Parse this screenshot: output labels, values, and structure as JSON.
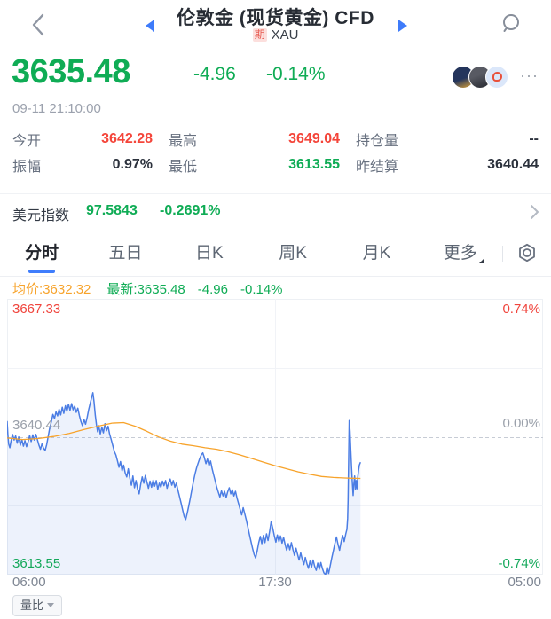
{
  "colors": {
    "up_red": "#f4453a",
    "down_green": "#0fac55",
    "accent_blue": "#3e7bfa",
    "avg_orange": "#f7a32b",
    "price_line_blue": "#4b7de4"
  },
  "header": {
    "title": "伦敦金 (现货黄金) CFD",
    "badge": "期",
    "symbol": "XAU"
  },
  "quote": {
    "price": "3635.48",
    "change": "-4.96",
    "change_pct": "-0.14%",
    "timestamp": "09-11 21:10:00",
    "more": "···"
  },
  "stats": {
    "items": [
      {
        "label": "今开",
        "value": "3642.28",
        "trend": "up"
      },
      {
        "label": "最高",
        "value": "3649.04",
        "trend": "up"
      },
      {
        "label": "持仓量",
        "value": "--",
        "trend": "flat"
      },
      {
        "label": "振幅",
        "value": "0.97%",
        "trend": "flat"
      },
      {
        "label": "最低",
        "value": "3613.55",
        "trend": "down"
      },
      {
        "label": "昨结算",
        "value": "3640.44",
        "trend": "flat"
      }
    ]
  },
  "usd_index": {
    "label": "美元指数",
    "value": "97.5843",
    "change_pct": "-0.2691%",
    "trend": "down"
  },
  "tabs": {
    "active": "分时",
    "items": [
      {
        "label": "分时"
      },
      {
        "label": "五日"
      },
      {
        "label": "日K"
      },
      {
        "label": "周K"
      },
      {
        "label": "月K"
      },
      {
        "label": "更多"
      }
    ]
  },
  "legend": {
    "avg": "均价:3632.32",
    "last": "最新:3635.48",
    "change": "-4.96",
    "change_pct": "-0.14%"
  },
  "chart_data": {
    "type": "line",
    "title": "分时 intraday line with average line",
    "grid": true,
    "x_range_minutes": [
      0,
      1380
    ],
    "x_tick_labels": [
      "06:00",
      "17:30",
      "05:00"
    ],
    "y_max": 3667.33,
    "y_min": 3613.55,
    "prev_settle": 3640.44,
    "session_high": 3649.04,
    "session_low": 3613.55,
    "last": 3635.48,
    "average": 3632.32,
    "y_axis_left": [
      {
        "text": "3667.33",
        "trend": "up"
      },
      {
        "text": "3640.44",
        "trend": "flat"
      },
      {
        "text": "3613.55",
        "trend": "down"
      }
    ],
    "y_axis_right": [
      {
        "text": "0.74%",
        "trend": "up"
      },
      {
        "text": "0.00%",
        "trend": "flat"
      },
      {
        "text": "-0.74%",
        "trend": "down"
      }
    ],
    "series": [
      {
        "name": "price",
        "color": "#4b7de4",
        "fill": "rgba(75,125,228,0.10)",
        "points": [
          [
            0,
            3643.5
          ],
          [
            2,
            3640.8
          ],
          [
            4,
            3639.0
          ],
          [
            7,
            3638.3
          ],
          [
            10,
            3639.6
          ],
          [
            14,
            3640.9
          ],
          [
            18,
            3639.8
          ],
          [
            22,
            3640.6
          ],
          [
            26,
            3639.2
          ],
          [
            30,
            3640.4
          ],
          [
            34,
            3638.8
          ],
          [
            38,
            3639.9
          ],
          [
            42,
            3638.6
          ],
          [
            46,
            3639.7
          ],
          [
            50,
            3638.5
          ],
          [
            54,
            3639.4
          ],
          [
            58,
            3640.7
          ],
          [
            62,
            3639.5
          ],
          [
            66,
            3640.8
          ],
          [
            70,
            3639.8
          ],
          [
            74,
            3640.9
          ],
          [
            78,
            3639.9
          ],
          [
            82,
            3638.8
          ],
          [
            86,
            3638.0
          ],
          [
            90,
            3639.1
          ],
          [
            94,
            3638.2
          ],
          [
            98,
            3637.8
          ],
          [
            102,
            3638.9
          ],
          [
            106,
            3640.6
          ],
          [
            110,
            3642.2
          ],
          [
            114,
            3643.4
          ],
          [
            118,
            3644.8
          ],
          [
            122,
            3644.0
          ],
          [
            126,
            3645.3
          ],
          [
            130,
            3644.5
          ],
          [
            134,
            3645.8
          ],
          [
            138,
            3644.7
          ],
          [
            142,
            3646.2
          ],
          [
            146,
            3645.0
          ],
          [
            150,
            3646.5
          ],
          [
            154,
            3645.4
          ],
          [
            158,
            3646.8
          ],
          [
            162,
            3645.6
          ],
          [
            166,
            3646.9
          ],
          [
            170,
            3645.7
          ],
          [
            174,
            3646.4
          ],
          [
            178,
            3645.2
          ],
          [
            182,
            3646.0
          ],
          [
            186,
            3644.6
          ],
          [
            190,
            3643.4
          ],
          [
            194,
            3642.6
          ],
          [
            198,
            3643.8
          ],
          [
            202,
            3642.9
          ],
          [
            206,
            3644.2
          ],
          [
            210,
            3645.7
          ],
          [
            214,
            3647.0
          ],
          [
            218,
            3648.2
          ],
          [
            221,
            3649.04
          ],
          [
            224,
            3647.2
          ],
          [
            227,
            3644.6
          ],
          [
            230,
            3642.8
          ],
          [
            233,
            3641.4
          ],
          [
            236,
            3642.6
          ],
          [
            240,
            3641.0
          ],
          [
            244,
            3642.3
          ],
          [
            248,
            3641.2
          ],
          [
            252,
            3643.0
          ],
          [
            256,
            3641.6
          ],
          [
            260,
            3642.5
          ],
          [
            264,
            3641.0
          ],
          [
            268,
            3639.9
          ],
          [
            272,
            3638.8
          ],
          [
            276,
            3637.6
          ],
          [
            280,
            3636.9
          ],
          [
            284,
            3635.8
          ],
          [
            288,
            3634.5
          ],
          [
            292,
            3635.6
          ],
          [
            296,
            3633.8
          ],
          [
            300,
            3634.9
          ],
          [
            304,
            3633.4
          ],
          [
            308,
            3632.6
          ],
          [
            312,
            3634.2
          ],
          [
            316,
            3632.4
          ],
          [
            320,
            3631.0
          ],
          [
            324,
            3632.8
          ],
          [
            328,
            3630.5
          ],
          [
            332,
            3631.9
          ],
          [
            336,
            3630.2
          ],
          [
            340,
            3629.3
          ],
          [
            344,
            3631.2
          ],
          [
            348,
            3632.6
          ],
          [
            352,
            3631.4
          ],
          [
            356,
            3632.9
          ],
          [
            360,
            3631.6
          ],
          [
            364,
            3630.4
          ],
          [
            368,
            3631.8
          ],
          [
            372,
            3630.6
          ],
          [
            376,
            3632.0
          ],
          [
            380,
            3630.8
          ],
          [
            384,
            3631.9
          ],
          [
            388,
            3630.2
          ],
          [
            392,
            3631.4
          ],
          [
            396,
            3630.6
          ],
          [
            400,
            3631.8
          ],
          [
            404,
            3630.9
          ],
          [
            408,
            3631.9
          ],
          [
            412,
            3630.4
          ],
          [
            416,
            3631.5
          ],
          [
            420,
            3632.2
          ],
          [
            424,
            3631.0
          ],
          [
            428,
            3631.9
          ],
          [
            432,
            3630.6
          ],
          [
            436,
            3631.4
          ],
          [
            440,
            3630.0
          ],
          [
            444,
            3628.8
          ],
          [
            448,
            3627.5
          ],
          [
            452,
            3626.2
          ],
          [
            456,
            3624.9
          ],
          [
            460,
            3624.3
          ],
          [
            464,
            3625.6
          ],
          [
            468,
            3627.0
          ],
          [
            472,
            3628.6
          ],
          [
            476,
            3630.2
          ],
          [
            480,
            3631.8
          ],
          [
            484,
            3633.2
          ],
          [
            488,
            3634.4
          ],
          [
            492,
            3635.3
          ],
          [
            496,
            3636.2
          ],
          [
            500,
            3636.9
          ],
          [
            504,
            3637.3
          ],
          [
            508,
            3636.4
          ],
          [
            512,
            3635.2
          ],
          [
            516,
            3636.1
          ],
          [
            520,
            3634.8
          ],
          [
            524,
            3635.7
          ],
          [
            528,
            3634.2
          ],
          [
            532,
            3633.0
          ],
          [
            536,
            3631.8
          ],
          [
            540,
            3630.6
          ],
          [
            544,
            3629.6
          ],
          [
            548,
            3628.7
          ],
          [
            552,
            3629.9
          ],
          [
            556,
            3628.9
          ],
          [
            560,
            3629.8
          ],
          [
            564,
            3628.6
          ],
          [
            568,
            3629.7
          ],
          [
            572,
            3630.5
          ],
          [
            576,
            3629.3
          ],
          [
            580,
            3630.1
          ],
          [
            584,
            3628.9
          ],
          [
            588,
            3629.8
          ],
          [
            592,
            3628.5
          ],
          [
            596,
            3627.4
          ],
          [
            600,
            3626.3
          ],
          [
            604,
            3625.2
          ],
          [
            608,
            3626.6
          ],
          [
            612,
            3625.4
          ],
          [
            616,
            3624.2
          ],
          [
            620,
            3622.8
          ],
          [
            624,
            3621.4
          ],
          [
            628,
            3620.0
          ],
          [
            632,
            3618.7
          ],
          [
            636,
            3617.5
          ],
          [
            640,
            3616.8
          ],
          [
            644,
            3618.2
          ],
          [
            648,
            3619.8
          ],
          [
            652,
            3621.0
          ],
          [
            656,
            3619.6
          ],
          [
            660,
            3621.2
          ],
          [
            664,
            3619.8
          ],
          [
            668,
            3621.5
          ],
          [
            672,
            3620.2
          ],
          [
            676,
            3622.0
          ],
          [
            680,
            3623.9
          ],
          [
            684,
            3622.6
          ],
          [
            688,
            3621.2
          ],
          [
            692,
            3619.9
          ],
          [
            696,
            3621.3
          ],
          [
            700,
            3620.0
          ],
          [
            704,
            3621.1
          ],
          [
            708,
            3619.7
          ],
          [
            712,
            3620.8
          ],
          [
            716,
            3619.4
          ],
          [
            720,
            3618.3
          ],
          [
            724,
            3619.6
          ],
          [
            728,
            3618.4
          ],
          [
            732,
            3619.8
          ],
          [
            736,
            3618.5
          ],
          [
            740,
            3617.3
          ],
          [
            744,
            3618.7
          ],
          [
            748,
            3617.5
          ],
          [
            752,
            3616.4
          ],
          [
            756,
            3617.8
          ],
          [
            760,
            3616.6
          ],
          [
            764,
            3615.5
          ],
          [
            768,
            3616.9
          ],
          [
            772,
            3615.7
          ],
          [
            776,
            3614.8
          ],
          [
            780,
            3616.2
          ],
          [
            784,
            3615.0
          ],
          [
            788,
            3616.4
          ],
          [
            792,
            3615.2
          ],
          [
            796,
            3614.4
          ],
          [
            800,
            3615.8
          ],
          [
            804,
            3614.6
          ],
          [
            808,
            3615.9
          ],
          [
            812,
            3614.7
          ],
          [
            816,
            3613.9
          ],
          [
            820,
            3613.55
          ],
          [
            824,
            3615.0
          ],
          [
            828,
            3613.8
          ],
          [
            832,
            3615.3
          ],
          [
            836,
            3616.8
          ],
          [
            840,
            3618.2
          ],
          [
            844,
            3619.6
          ],
          [
            848,
            3620.9
          ],
          [
            852,
            3619.5
          ],
          [
            856,
            3618.3
          ],
          [
            860,
            3619.9
          ],
          [
            864,
            3621.2
          ],
          [
            868,
            3620.0
          ],
          [
            872,
            3621.5
          ],
          [
            875,
            3622.4
          ],
          [
            877,
            3624.5
          ],
          [
            878,
            3628.0
          ],
          [
            879,
            3633.0
          ],
          [
            880,
            3639.0
          ],
          [
            881,
            3643.6
          ],
          [
            883,
            3641.5
          ],
          [
            885,
            3638.0
          ],
          [
            887,
            3634.5
          ],
          [
            889,
            3631.5
          ],
          [
            891,
            3629.0
          ],
          [
            893,
            3631.2
          ],
          [
            895,
            3632.8
          ],
          [
            897,
            3630.2
          ],
          [
            899,
            3631.9
          ],
          [
            901,
            3630.3
          ],
          [
            903,
            3632.5
          ],
          [
            905,
            3633.9
          ],
          [
            907,
            3634.9
          ],
          [
            910,
            3635.48
          ]
        ]
      },
      {
        "name": "avg",
        "color": "#f7a32b",
        "points": [
          [
            0,
            3640.2
          ],
          [
            40,
            3639.9
          ],
          [
            80,
            3640.1
          ],
          [
            120,
            3640.5
          ],
          [
            160,
            3641.1
          ],
          [
            200,
            3641.9
          ],
          [
            240,
            3642.6
          ],
          [
            270,
            3643.1
          ],
          [
            300,
            3643.2
          ],
          [
            330,
            3642.5
          ],
          [
            360,
            3641.5
          ],
          [
            390,
            3640.4
          ],
          [
            420,
            3639.6
          ],
          [
            450,
            3639.0
          ],
          [
            480,
            3638.7
          ],
          [
            510,
            3638.3
          ],
          [
            540,
            3638.0
          ],
          [
            570,
            3637.5
          ],
          [
            600,
            3636.9
          ],
          [
            630,
            3636.2
          ],
          [
            660,
            3635.5
          ],
          [
            690,
            3634.8
          ],
          [
            720,
            3634.2
          ],
          [
            750,
            3633.6
          ],
          [
            780,
            3633.1
          ],
          [
            810,
            3632.7
          ],
          [
            840,
            3632.5
          ],
          [
            870,
            3632.4
          ],
          [
            890,
            3632.35
          ],
          [
            910,
            3632.32
          ]
        ]
      }
    ]
  },
  "volume_panel": {
    "label": "量比"
  }
}
